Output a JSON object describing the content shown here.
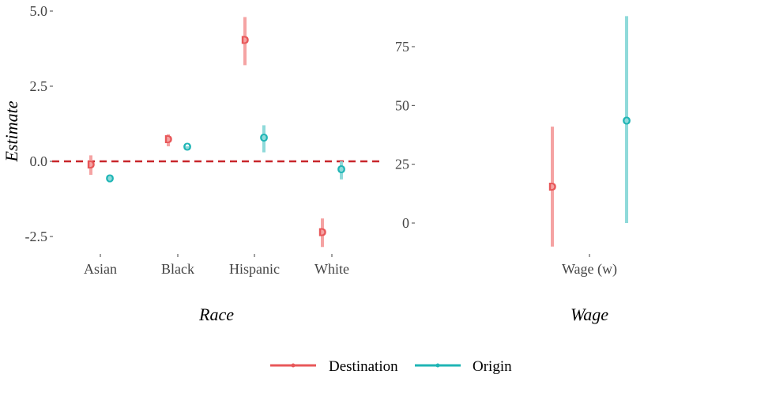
{
  "chart_data": [
    {
      "type": "pointrange",
      "facet": "left",
      "ylabel": "Estimate",
      "xlabel": "Race",
      "categories": [
        "Asian",
        "Black",
        "Hispanic",
        "White"
      ],
      "ylim": [
        -3.3,
        5.3
      ],
      "yticks": [
        "5.0",
        "2.5",
        "0.0",
        "-2.5"
      ],
      "reference_line": 0,
      "series": [
        {
          "name": "Destination",
          "marker": "D",
          "color": "#E8585A",
          "points": [
            {
              "category": "Asian",
              "estimate": -0.15,
              "low": -0.45,
              "high": 0.2
            },
            {
              "category": "Black",
              "estimate": 0.7,
              "low": 0.5,
              "high": 0.9
            },
            {
              "category": "Hispanic",
              "estimate": 4.0,
              "low": 3.2,
              "high": 4.8
            },
            {
              "category": "White",
              "estimate": -2.4,
              "low": -2.85,
              "high": -1.9
            }
          ]
        },
        {
          "name": "Origin",
          "marker": "O",
          "color": "#1FB5B5",
          "points": [
            {
              "category": "Asian",
              "estimate": -0.6,
              "low": -0.7,
              "high": -0.45
            },
            {
              "category": "Black",
              "estimate": 0.45,
              "low": 0.4,
              "high": 0.5
            },
            {
              "category": "Hispanic",
              "estimate": 0.75,
              "low": 0.3,
              "high": 1.2
            },
            {
              "category": "White",
              "estimate": -0.3,
              "low": -0.6,
              "high": 0.0
            }
          ]
        }
      ]
    },
    {
      "type": "pointrange",
      "facet": "right",
      "xlabel": "Wage",
      "categories": [
        "Wage (w)"
      ],
      "ylim": [
        -10,
        90
      ],
      "yticks": [
        "75",
        "50",
        "25",
        "0"
      ],
      "series": [
        {
          "name": "Destination",
          "marker": "D",
          "color": "#E8585A",
          "points": [
            {
              "category": "Wage (w)",
              "estimate": 15,
              "low": -10,
              "high": 41
            }
          ]
        },
        {
          "name": "Origin",
          "marker": "O",
          "color": "#1FB5B5",
          "points": [
            {
              "category": "Wage (w)",
              "estimate": 43,
              "low": 0,
              "high": 88
            }
          ]
        }
      ]
    }
  ],
  "legend": {
    "position": "bottom",
    "items": [
      {
        "label": "Destination",
        "color": "#E8585A"
      },
      {
        "label": "Origin",
        "color": "#1FB5B5"
      }
    ]
  }
}
